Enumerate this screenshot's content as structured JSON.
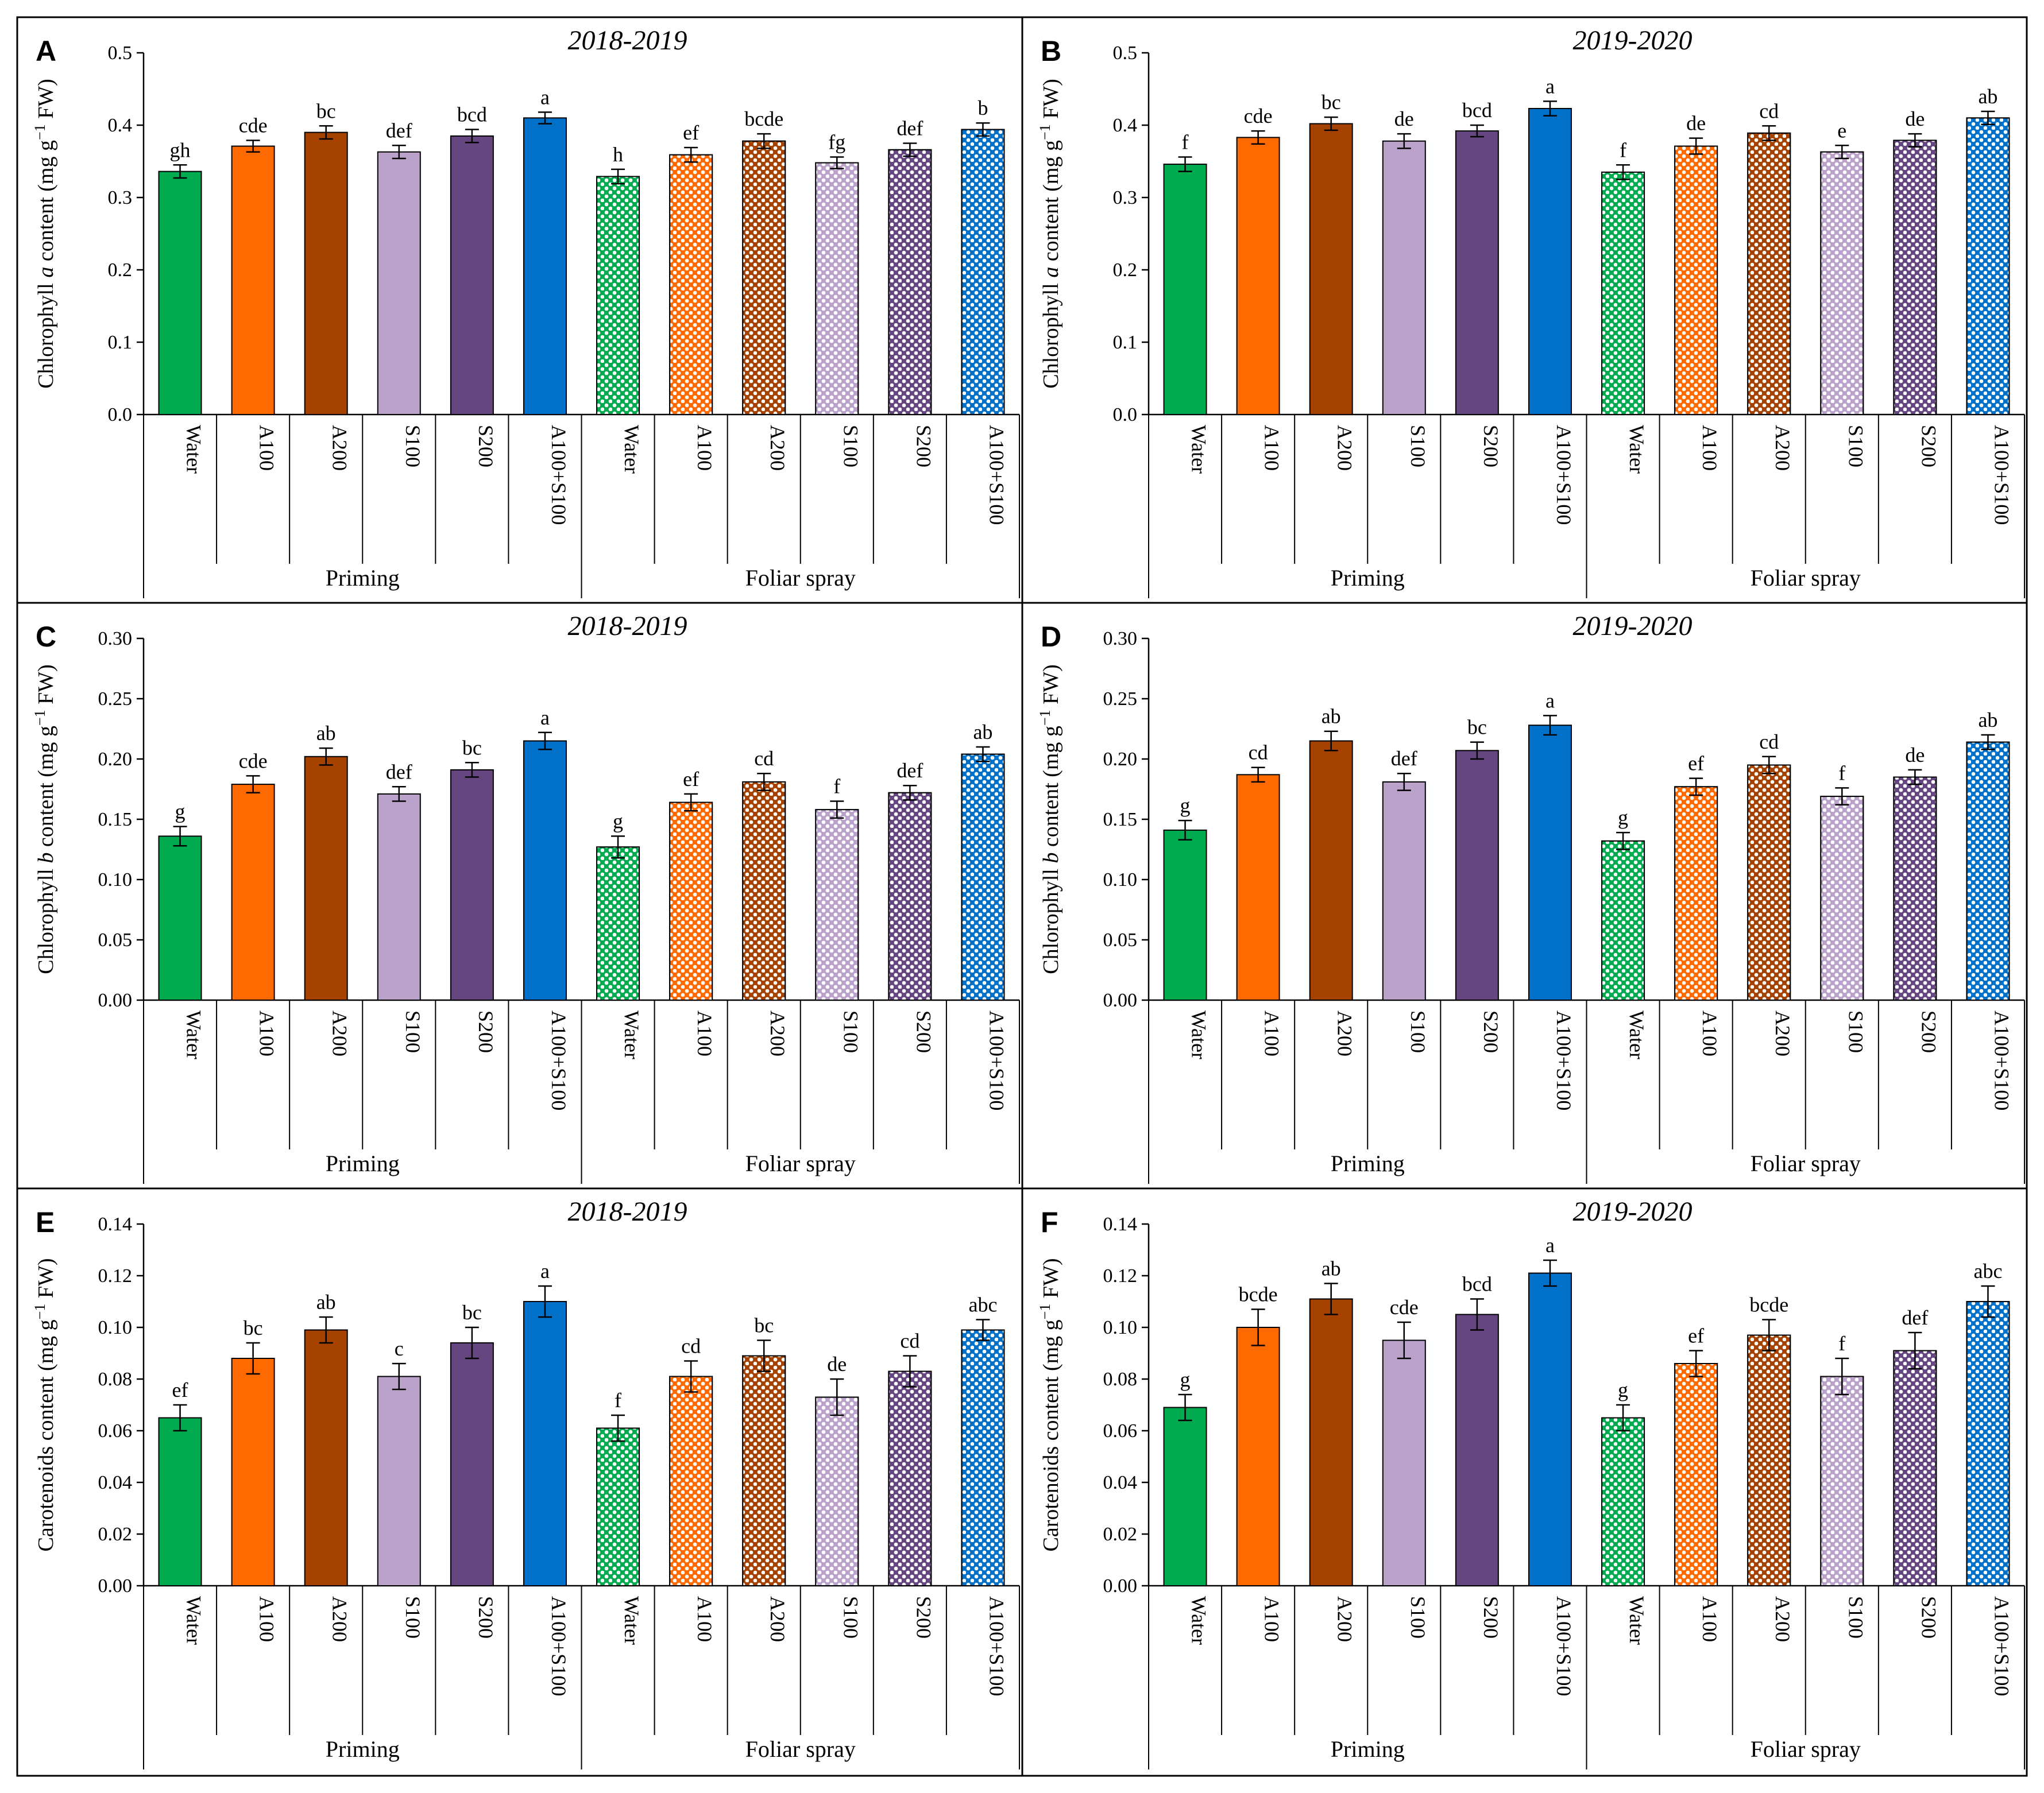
{
  "categories": [
    "Water",
    "A100",
    "A200",
    "S100",
    "S200",
    "A100+S100"
  ],
  "groups": [
    "Priming",
    "Foliar spray"
  ],
  "colors": {
    "Water": "#00AA4F",
    "A100": "#FF6A00",
    "A200": "#A54200",
    "S100": "#BBA2CB",
    "S200": "#664680",
    "A100+S100": "#0070C8"
  },
  "chart_data": [
    {
      "panel": "A",
      "type": "bar",
      "title": "2018-2019",
      "ylabel": [
        "Chlorophyll ",
        "a",
        " content (mg g",
        "−1",
        " FW)"
      ],
      "ylim": [
        0,
        0.5
      ],
      "yticks": [
        "0.0",
        "0.1",
        "0.2",
        "0.3",
        "0.4",
        "0.5"
      ],
      "series": [
        {
          "name": "Priming",
          "values": [
            0.336,
            0.371,
            0.39,
            0.363,
            0.385,
            0.41
          ],
          "errors": [
            0.009,
            0.008,
            0.009,
            0.009,
            0.009,
            0.008
          ],
          "letters": [
            "gh",
            "cde",
            "bc",
            "def",
            "bcd",
            "a"
          ]
        },
        {
          "name": "Foliar spray",
          "values": [
            0.329,
            0.359,
            0.378,
            0.348,
            0.366,
            0.394
          ],
          "errors": [
            0.01,
            0.01,
            0.01,
            0.008,
            0.009,
            0.009
          ],
          "letters": [
            "h",
            "ef",
            "bcde",
            "fg",
            "def",
            "b"
          ]
        }
      ]
    },
    {
      "panel": "B",
      "type": "bar",
      "title": "2019-2020",
      "ylabel": [
        "Chlorophyll ",
        "a",
        " content (mg g",
        "−1",
        " FW)"
      ],
      "ylim": [
        0,
        0.5
      ],
      "yticks": [
        "0.0",
        "0.1",
        "0.2",
        "0.3",
        "0.4",
        "0.5"
      ],
      "series": [
        {
          "name": "Priming",
          "values": [
            0.346,
            0.383,
            0.402,
            0.378,
            0.392,
            0.423
          ],
          "errors": [
            0.01,
            0.009,
            0.009,
            0.01,
            0.008,
            0.01
          ],
          "letters": [
            "f",
            "cde",
            "bc",
            "de",
            "bcd",
            "a"
          ]
        },
        {
          "name": "Foliar spray",
          "values": [
            0.335,
            0.371,
            0.389,
            0.363,
            0.379,
            0.41
          ],
          "errors": [
            0.01,
            0.011,
            0.01,
            0.009,
            0.009,
            0.009
          ],
          "letters": [
            "f",
            "de",
            "cd",
            "e",
            "de",
            "ab"
          ]
        }
      ]
    },
    {
      "panel": "C",
      "type": "bar",
      "title": "2018-2019",
      "ylabel": [
        "Chlorophyll ",
        "b",
        " content (mg g",
        "−1",
        " FW)"
      ],
      "ylim": [
        0,
        0.3
      ],
      "yticks": [
        "0.00",
        "0.05",
        "0.10",
        "0.15",
        "0.20",
        "0.25",
        "0.30"
      ],
      "series": [
        {
          "name": "Priming",
          "values": [
            0.136,
            0.179,
            0.202,
            0.171,
            0.191,
            0.215
          ],
          "errors": [
            0.008,
            0.007,
            0.007,
            0.006,
            0.006,
            0.007
          ],
          "letters": [
            "g",
            "cde",
            "ab",
            "def",
            "bc",
            "a"
          ]
        },
        {
          "name": "Foliar spray",
          "values": [
            0.127,
            0.164,
            0.181,
            0.158,
            0.172,
            0.204
          ],
          "errors": [
            0.009,
            0.007,
            0.007,
            0.007,
            0.006,
            0.006
          ],
          "letters": [
            "g",
            "ef",
            "cd",
            "f",
            "def",
            "ab"
          ]
        }
      ]
    },
    {
      "panel": "D",
      "type": "bar",
      "title": "2019-2020",
      "ylabel": [
        "Chlorophyll ",
        "b",
        " content (mg g",
        "−1",
        " FW)"
      ],
      "ylim": [
        0,
        0.3
      ],
      "yticks": [
        "0.00",
        "0.05",
        "0.10",
        "0.15",
        "0.20",
        "0.25",
        "0.30"
      ],
      "series": [
        {
          "name": "Priming",
          "values": [
            0.141,
            0.187,
            0.215,
            0.181,
            0.207,
            0.228
          ],
          "errors": [
            0.008,
            0.006,
            0.008,
            0.007,
            0.007,
            0.008
          ],
          "letters": [
            "g",
            "cd",
            "ab",
            "def",
            "bc",
            "a"
          ]
        },
        {
          "name": "Foliar spray",
          "values": [
            0.132,
            0.177,
            0.195,
            0.169,
            0.185,
            0.214
          ],
          "errors": [
            0.007,
            0.007,
            0.007,
            0.007,
            0.006,
            0.006
          ],
          "letters": [
            "g",
            "ef",
            "cd",
            "f",
            "de",
            "ab"
          ]
        }
      ]
    },
    {
      "panel": "E",
      "type": "bar",
      "title": "2018-2019",
      "ylabel": [
        "Carotenoids content (mg g",
        "−1",
        " FW)"
      ],
      "ylim": [
        0,
        0.14
      ],
      "yticks": [
        "0.00",
        "0.02",
        "0.04",
        "0.06",
        "0.08",
        "0.10",
        "0.12",
        "0.14"
      ],
      "series": [
        {
          "name": "Priming",
          "values": [
            0.065,
            0.088,
            0.099,
            0.081,
            0.094,
            0.11
          ],
          "errors": [
            0.005,
            0.006,
            0.005,
            0.005,
            0.006,
            0.006
          ],
          "letters": [
            "ef",
            "bc",
            "ab",
            "c",
            "bc",
            "a"
          ]
        },
        {
          "name": "Foliar spray",
          "values": [
            0.061,
            0.081,
            0.089,
            0.073,
            0.083,
            0.099
          ],
          "errors": [
            0.005,
            0.006,
            0.006,
            0.007,
            0.006,
            0.004
          ],
          "letters": [
            "f",
            "cd",
            "bc",
            "de",
            "cd",
            "abc"
          ]
        }
      ]
    },
    {
      "panel": "F",
      "type": "bar",
      "title": "2019-2020",
      "ylabel": [
        "Carotenoids content (mg g",
        "−1",
        " FW)"
      ],
      "ylim": [
        0,
        0.14
      ],
      "yticks": [
        "0.00",
        "0.02",
        "0.04",
        "0.06",
        "0.08",
        "0.10",
        "0.12",
        "0.14"
      ],
      "series": [
        {
          "name": "Priming",
          "values": [
            0.069,
            0.1,
            0.111,
            0.095,
            0.105,
            0.121
          ],
          "errors": [
            0.005,
            0.007,
            0.006,
            0.007,
            0.006,
            0.005
          ],
          "letters": [
            "g",
            "bcde",
            "ab",
            "cde",
            "bcd",
            "a"
          ]
        },
        {
          "name": "Foliar spray",
          "values": [
            0.065,
            0.086,
            0.097,
            0.081,
            0.091,
            0.11
          ],
          "errors": [
            0.005,
            0.005,
            0.006,
            0.007,
            0.007,
            0.006
          ],
          "letters": [
            "g",
            "ef",
            "bcde",
            "f",
            "def",
            "abc"
          ]
        }
      ]
    }
  ]
}
